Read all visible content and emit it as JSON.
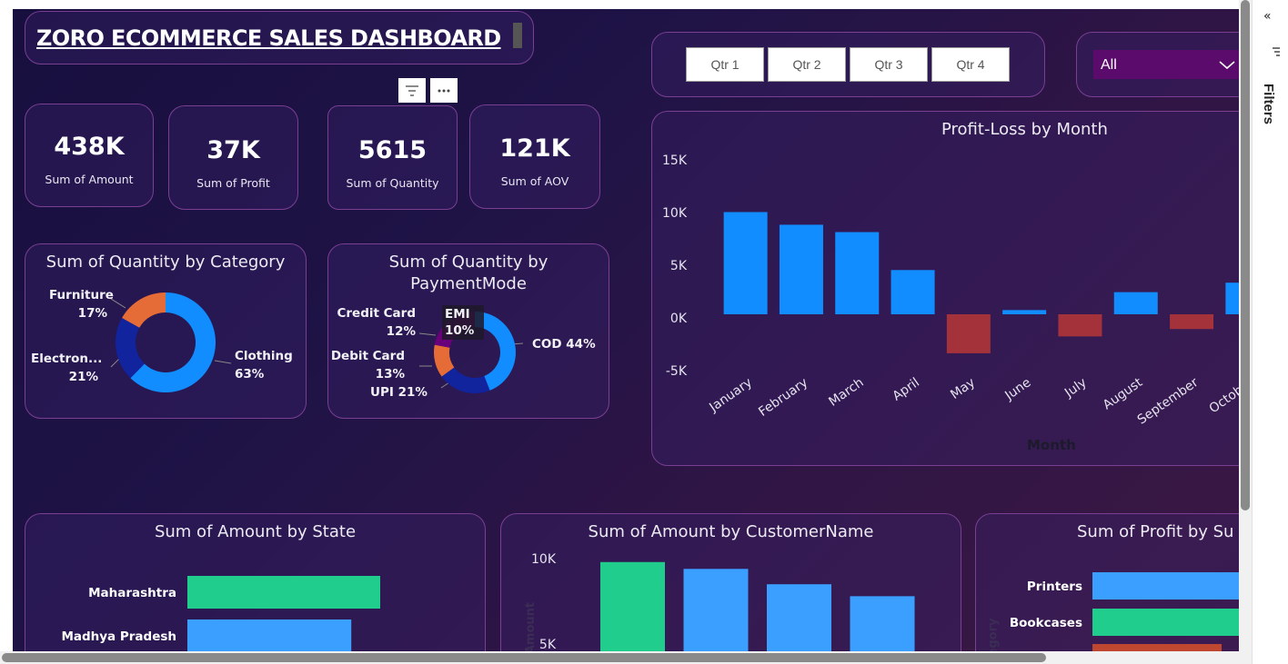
{
  "dashboard": {
    "title": "ZORO ECOMMERCE SALES DASHBOARD"
  },
  "kpis": [
    {
      "value": "438K",
      "label": "Sum of Amount"
    },
    {
      "value": "37K",
      "label": "Sum of Profit"
    },
    {
      "value": "5615",
      "label": "Sum of Quantity"
    },
    {
      "value": "121K",
      "label": "Sum of AOV"
    }
  ],
  "quarter_slicer": {
    "buttons": [
      "Qtr 1",
      "Qtr 2",
      "Qtr 3",
      "Qtr 4"
    ]
  },
  "dropdown": {
    "value": "All"
  },
  "visual_header": {
    "filter_icon": "filter-icon",
    "more_icon": "more-options-icon"
  },
  "filters_pane": {
    "label": "Filters",
    "collapse_icon": "double-chevron-left-icon"
  },
  "colors": {
    "blue": "#118dff",
    "dark_blue": "#12239e",
    "orange": "#e66c37",
    "purple": "#6b007b",
    "loss_red": "#a4323a",
    "green": "#21cd8c",
    "light_blue": "#3a9fff",
    "card_border": "#7a3f93"
  },
  "category_chart": {
    "title": "Sum of Quantity by Category",
    "labels": [
      {
        "name": "Furniture",
        "pct": "17%"
      },
      {
        "name": "Electron...",
        "pct": "21%"
      },
      {
        "name": "Clothing",
        "pct": "63%"
      }
    ]
  },
  "payment_chart": {
    "title_line1": "Sum of Quantity by",
    "title_line2": "PaymentMode",
    "labels": [
      {
        "name": "Credit Card",
        "pct": "12%"
      },
      {
        "name": "EMI",
        "pct": "10%"
      },
      {
        "name": "Debit Card",
        "pct": "13%"
      },
      {
        "name": "UPI 21%"
      },
      {
        "name": "COD 44%"
      }
    ]
  },
  "profit_chart": {
    "title": "Profit-Loss by Month",
    "xlabel": "Month"
  },
  "state_chart": {
    "title": "Sum of Amount by State"
  },
  "customer_chart": {
    "title": "Sum of Amount by CustomerName",
    "ylabel_partial": "Amount"
  },
  "subcat_chart": {
    "title": "Sum of Profit by Su",
    "ylabel_partial": "egory"
  },
  "chart_data": [
    {
      "type": "pie",
      "title": "Sum of Quantity by Category",
      "categories": [
        "Clothing",
        "Electronics",
        "Furniture"
      ],
      "values": [
        63,
        21,
        17
      ]
    },
    {
      "type": "pie",
      "title": "Sum of Quantity by PaymentMode",
      "categories": [
        "COD",
        "UPI",
        "Debit Card",
        "Credit Card",
        "EMI"
      ],
      "values": [
        44,
        21,
        13,
        12,
        10
      ]
    },
    {
      "type": "bar",
      "title": "Profit-Loss by Month",
      "xlabel": "Month",
      "categories": [
        "January",
        "February",
        "March",
        "April",
        "May",
        "June",
        "July",
        "August",
        "September",
        "October"
      ],
      "values": [
        9700,
        8500,
        7800,
        4200,
        -3700,
        400,
        -2100,
        2100,
        -1400,
        3000
      ],
      "ylim": [
        -5000,
        15000
      ],
      "yticks": [
        "15K",
        "10K",
        "5K",
        "0K",
        "-5K"
      ]
    },
    {
      "type": "bar",
      "title": "Sum of Amount by State",
      "categories": [
        "Maharashtra",
        "Madhya Pradesh"
      ],
      "values": [
        100,
        85
      ]
    },
    {
      "type": "bar",
      "title": "Sum of Amount by CustomerName",
      "values": [
        9800,
        9400,
        8500,
        7800
      ],
      "ylim": [
        5000,
        10000
      ],
      "yticks": [
        "10K",
        "5K"
      ]
    },
    {
      "type": "bar",
      "title": "Sum of Profit by Sub-Category",
      "categories": [
        "Printers",
        "Bookcases"
      ]
    }
  ]
}
